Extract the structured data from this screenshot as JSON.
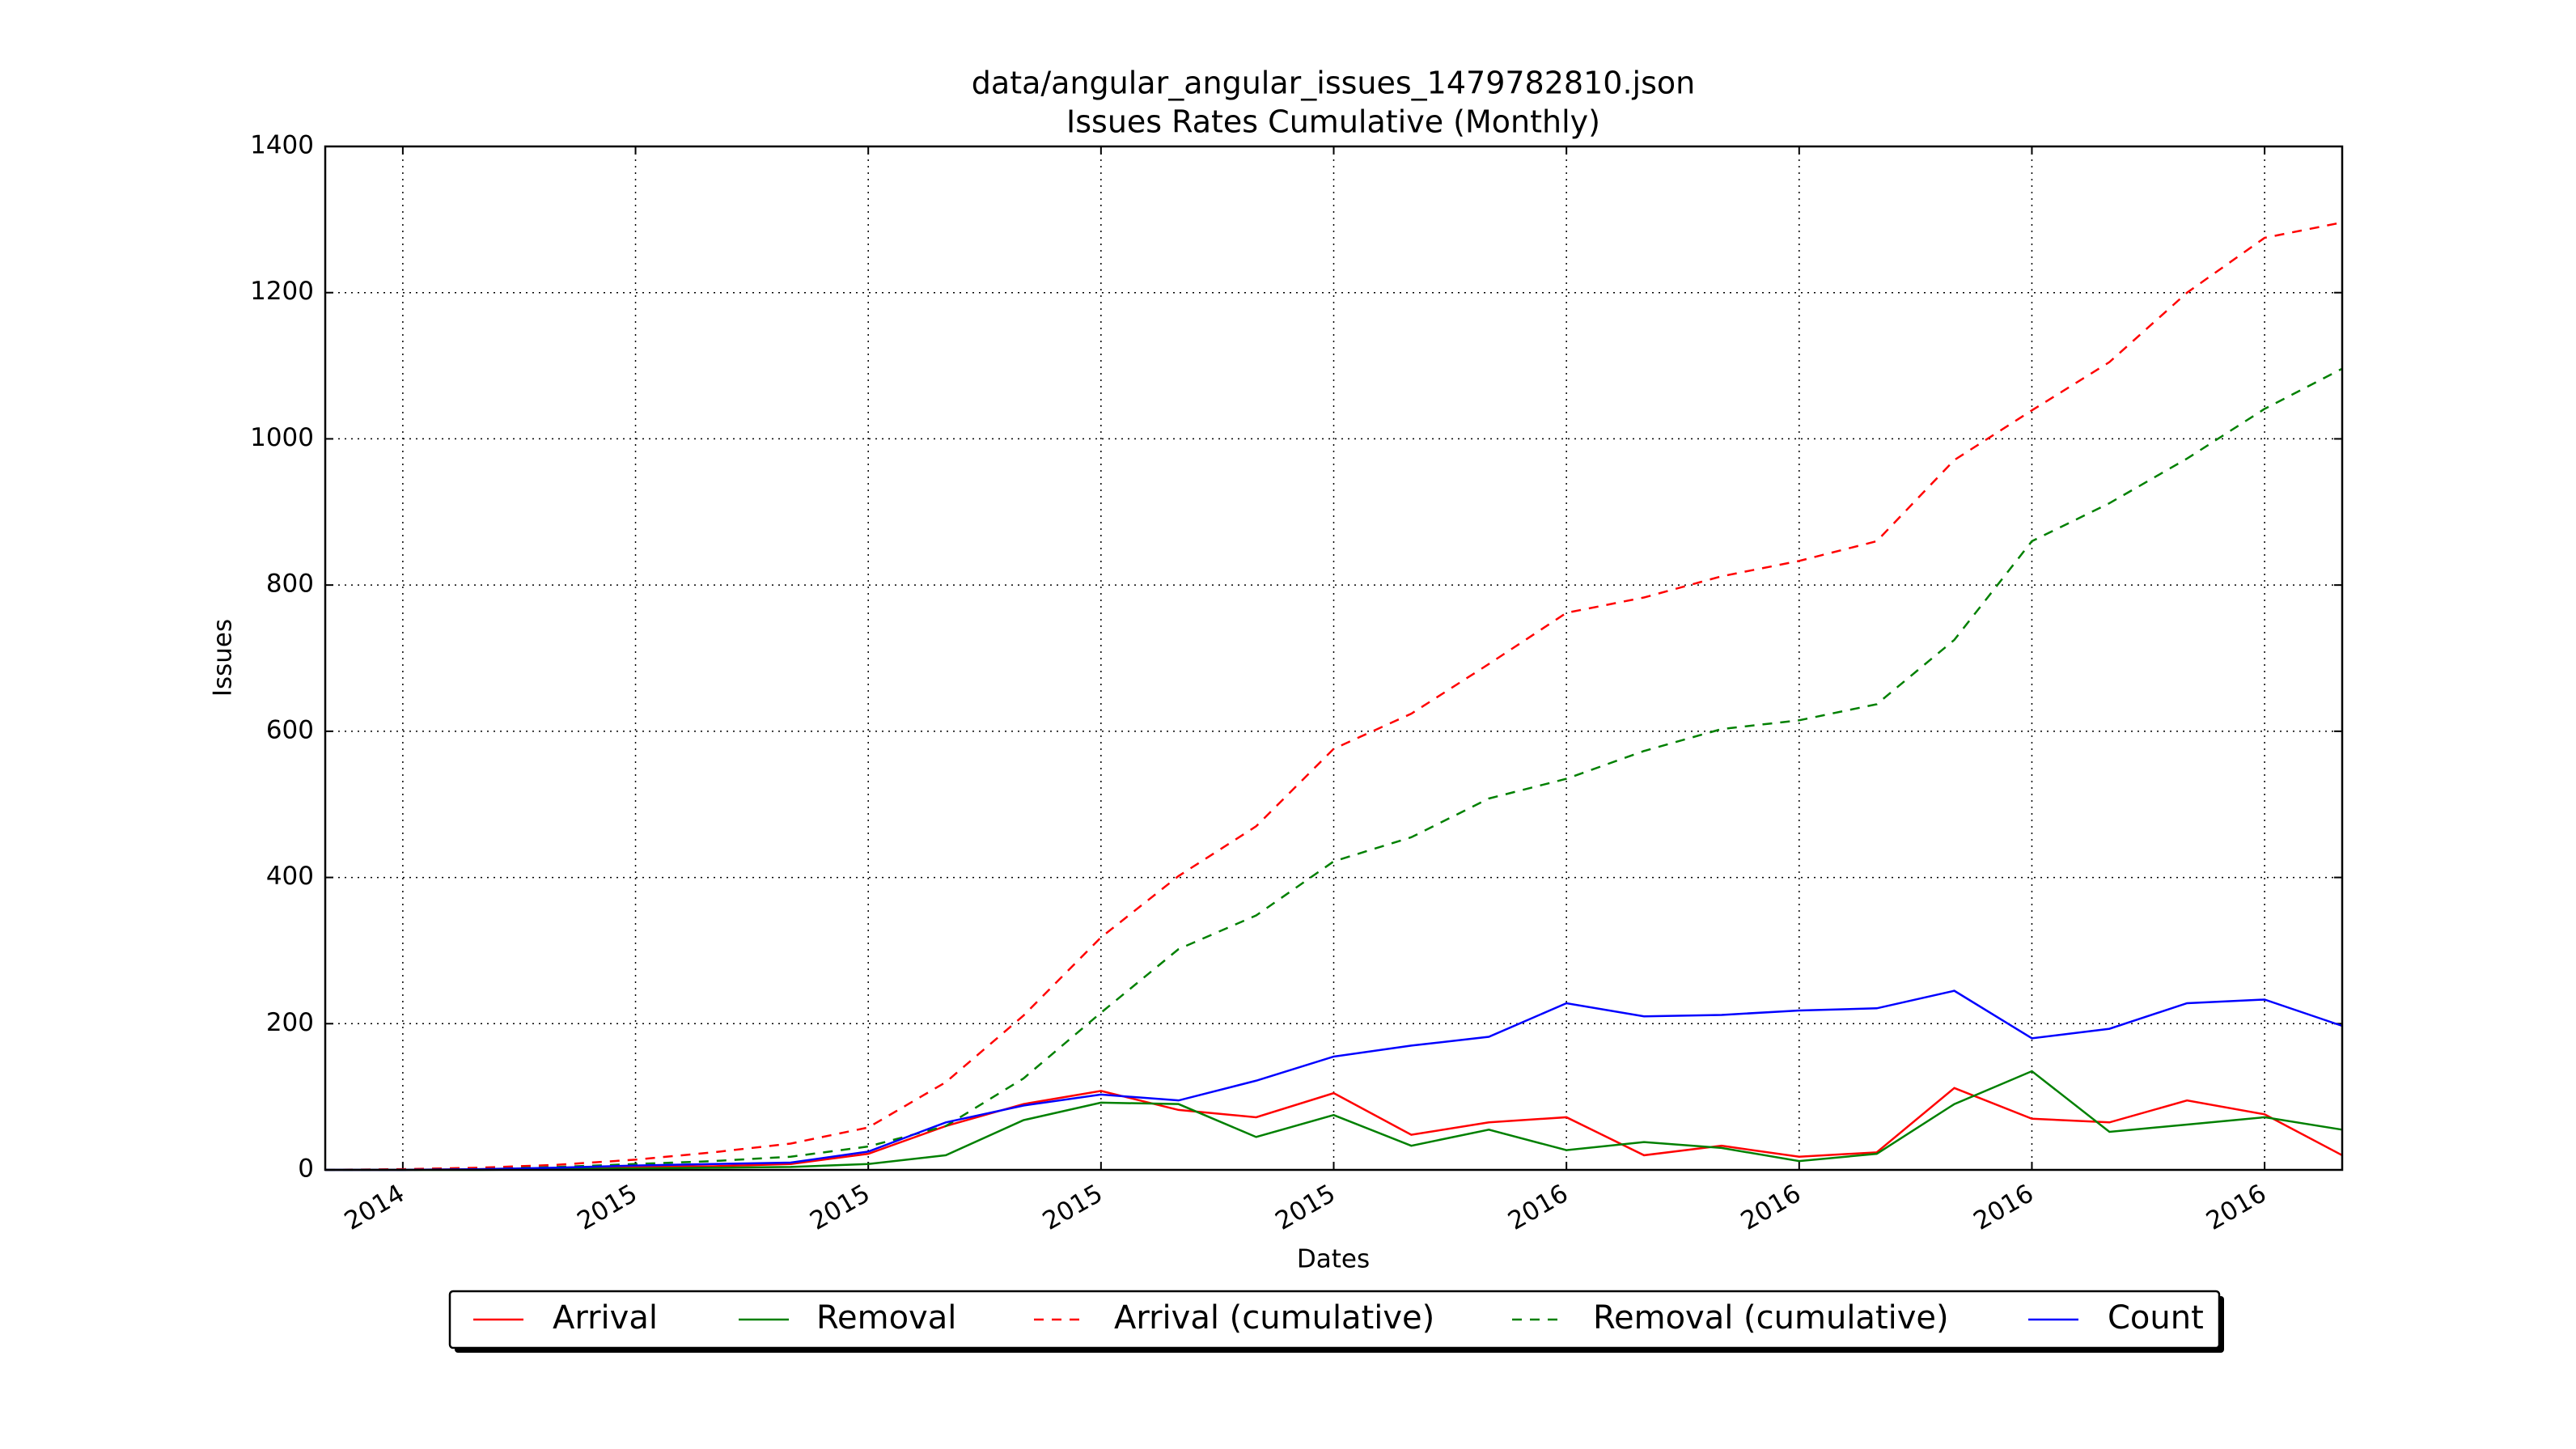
{
  "chart_data": {
    "type": "line",
    "title": "data/angular_angular_issues_1479782810.json",
    "subtitle": "Issues Rates Cumulative (Monthly)",
    "x_label": "Dates",
    "y_label": "Issues",
    "categories": [
      null,
      "2014",
      null,
      null,
      "2015",
      null,
      null,
      "2015",
      null,
      null,
      "2015",
      null,
      null,
      "2015",
      null,
      null,
      "2016",
      null,
      null,
      "2016",
      null,
      null,
      "2016",
      null,
      null,
      "2016",
      null
    ],
    "series": [
      {
        "name": "Arrival",
        "color": "#ff0000",
        "linestyle": "solid",
        "values": [
          0,
          0,
          1,
          2,
          4,
          5,
          8,
          22,
          60,
          90,
          108,
          82,
          72,
          105,
          48,
          65,
          72,
          20,
          33,
          18,
          24,
          112,
          70,
          65,
          95,
          76,
          20
        ]
      },
      {
        "name": "Removal",
        "color": "#008000",
        "linestyle": "solid",
        "values": [
          0,
          0,
          0,
          1,
          2,
          3,
          4,
          8,
          20,
          68,
          92,
          90,
          45,
          75,
          33,
          55,
          27,
          38,
          30,
          12,
          22,
          90,
          135,
          52,
          62,
          72,
          55
        ]
      },
      {
        "name": "Arrival (cumulative)",
        "color": "#ff0000",
        "linestyle": "dashed",
        "values": [
          0,
          1,
          3,
          7,
          14,
          24,
          36,
          58,
          120,
          211,
          318,
          402,
          470,
          576,
          624,
          692,
          762,
          783,
          812,
          833,
          860,
          971,
          1039,
          1105,
          1200,
          1275,
          1296
        ]
      },
      {
        "name": "Removal (cumulative)",
        "color": "#008000",
        "linestyle": "dashed",
        "values": [
          0,
          0,
          1,
          4,
          8,
          12,
          18,
          32,
          60,
          125,
          215,
          302,
          348,
          422,
          455,
          508,
          535,
          573,
          603,
          615,
          637,
          725,
          860,
          912,
          973,
          1041,
          1096
        ]
      },
      {
        "name": "Count",
        "color": "#0000ff",
        "linestyle": "solid",
        "values": [
          0,
          0,
          1,
          3,
          6,
          8,
          10,
          25,
          65,
          88,
          103,
          95,
          122,
          155,
          170,
          182,
          228,
          210,
          212,
          218,
          221,
          245,
          180,
          193,
          228,
          233,
          197
        ]
      }
    ],
    "ylim": [
      0,
      1400
    ],
    "yticks": [
      0,
      200,
      400,
      600,
      800,
      1000,
      1200,
      1400
    ],
    "grid": true,
    "legend": "lower center"
  }
}
